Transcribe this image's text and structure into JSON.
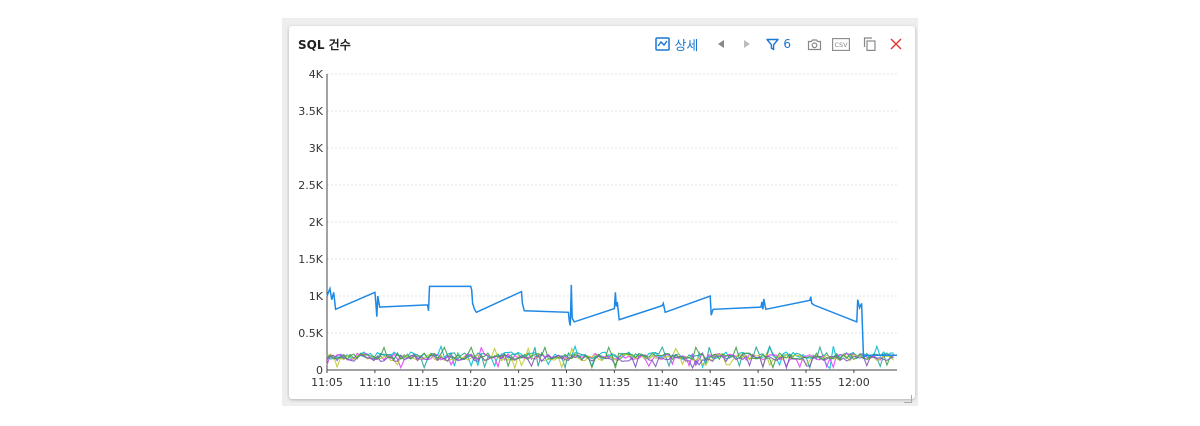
{
  "panel": {
    "title": "SQL 건수",
    "detail_label": "상세",
    "filter_count": "6",
    "csv_label": "CSV"
  },
  "icons": {
    "detail": "line-chart-icon",
    "prev": "caret-left-icon",
    "next": "caret-right-icon",
    "filter": "filter-icon",
    "camera": "camera-icon",
    "csv": "csv-icon",
    "copy": "copy-icon",
    "close": "close-icon",
    "resize": "resize-handle-icon"
  },
  "colors": {
    "accent": "#1976d2",
    "close": "#e53935",
    "main_series": "#1e88e5",
    "series_palette": [
      "#00bcd4",
      "#26a69a",
      "#e040fb",
      "#c0ca33",
      "#7e57c2",
      "#43a047",
      "#00acc1",
      "#ab47bc"
    ]
  },
  "chart_data": {
    "type": "line",
    "x_ticks": [
      "11:05",
      "11:10",
      "11:15",
      "11:20",
      "11:25",
      "11:30",
      "11:35",
      "11:40",
      "11:45",
      "11:50",
      "11:55",
      "12:00"
    ],
    "y_ticks": [
      "0",
      "0.5K",
      "1K",
      "1.5K",
      "2K",
      "2.5K",
      "3K",
      "3.5K",
      "4K"
    ],
    "xlim": [
      0,
      59.5
    ],
    "ylim": [
      0,
      4000
    ],
    "grid": true,
    "series": [
      {
        "color": "#1e88e5",
        "points": [
          [
            0,
            1000
          ],
          [
            0.3,
            1100
          ],
          [
            0.5,
            950
          ],
          [
            0.7,
            1050
          ],
          [
            0.9,
            820
          ],
          [
            5,
            1050
          ],
          [
            5.1,
            900
          ],
          [
            5.2,
            720
          ],
          [
            5.3,
            1000
          ],
          [
            5.5,
            850
          ],
          [
            10.5,
            880
          ],
          [
            10.6,
            800
          ],
          [
            10.7,
            1130
          ],
          [
            15,
            1130
          ],
          [
            15.1,
            1080
          ],
          [
            15.2,
            900
          ],
          [
            15.4,
            820
          ],
          [
            15.6,
            780
          ],
          [
            20.3,
            1060
          ],
          [
            20.4,
            900
          ],
          [
            20.6,
            800
          ],
          [
            25.2,
            780
          ],
          [
            25.3,
            650
          ],
          [
            25.4,
            600
          ],
          [
            25.5,
            1150
          ],
          [
            25.6,
            700
          ],
          [
            25.8,
            650
          ],
          [
            30,
            830
          ],
          [
            30.1,
            1050
          ],
          [
            30.2,
            860
          ],
          [
            30.3,
            920
          ],
          [
            30.5,
            680
          ],
          [
            35,
            870
          ],
          [
            35.1,
            900
          ],
          [
            35.3,
            780
          ],
          [
            40,
            1000
          ],
          [
            40.1,
            740
          ],
          [
            40.3,
            820
          ],
          [
            45.3,
            850
          ],
          [
            45.4,
            920
          ],
          [
            45.5,
            820
          ],
          [
            45.6,
            960
          ],
          [
            45.8,
            820
          ],
          [
            50.4,
            940
          ],
          [
            50.5,
            990
          ],
          [
            50.6,
            900
          ],
          [
            50.8,
            880
          ],
          [
            55.3,
            650
          ],
          [
            55.4,
            950
          ],
          [
            55.6,
            840
          ],
          [
            55.8,
            900
          ],
          [
            56,
            170
          ],
          [
            56.2,
            200
          ],
          [
            59.5,
            200
          ]
        ]
      }
    ],
    "noise_series": [
      {
        "color": "#00bcd4",
        "base": 200
      },
      {
        "color": "#26a69a",
        "base": 190
      },
      {
        "color": "#e040fb",
        "base": 180
      },
      {
        "color": "#c0ca33",
        "base": 170
      },
      {
        "color": "#7e57c2",
        "base": 160
      },
      {
        "color": "#43a047",
        "base": 185
      }
    ]
  }
}
